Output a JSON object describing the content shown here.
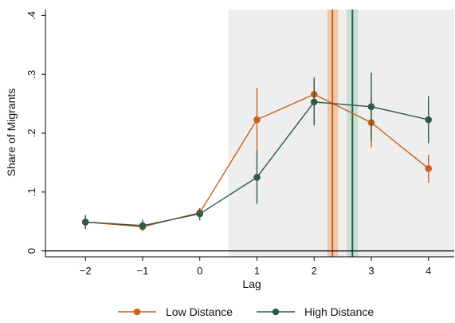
{
  "chart_data": {
    "type": "line",
    "xlabel": "Lag",
    "ylabel": "Share of Migrants",
    "x": [
      -2,
      -1,
      0,
      1,
      2,
      3,
      4
    ],
    "x_tick_labels": [
      "−2",
      "−1",
      "0",
      "1",
      "2",
      "3",
      "4"
    ],
    "xlim": [
      -2.7,
      4.45
    ],
    "ylim": [
      -0.01,
      0.41
    ],
    "y_ticks": [
      0,
      0.1,
      0.2,
      0.3,
      0.4
    ],
    "y_tick_labels": [
      "0",
      ".1",
      ".2",
      ".3",
      ".4"
    ],
    "grid": false,
    "legend_position": "bottom",
    "shaded_region": {
      "x_from": 0.5,
      "x_to": 4.45,
      "color": "#eeeeee"
    },
    "vertical_markers": [
      {
        "series": "Low Distance",
        "x": 2.32,
        "band": [
          2.23,
          2.42
        ],
        "color": "#c8621c",
        "band_color": "#f2c9a8"
      },
      {
        "series": "High Distance",
        "x": 2.67,
        "band": [
          2.57,
          2.77
        ],
        "color": "#2f5a48",
        "band_color": "#c8dfd3"
      }
    ],
    "series": [
      {
        "name": "Low Distance",
        "color": "#c8621c",
        "values": [
          0.049,
          0.041,
          0.065,
          0.223,
          0.266,
          0.218,
          0.14
        ],
        "ci_low": [
          0.04,
          0.035,
          0.058,
          0.17,
          0.238,
          0.176,
          0.116
        ],
        "ci_high": [
          0.058,
          0.048,
          0.072,
          0.277,
          0.295,
          0.26,
          0.163
        ]
      },
      {
        "name": "High Distance",
        "color": "#2f5a48",
        "values": [
          0.049,
          0.043,
          0.063,
          0.125,
          0.253,
          0.245,
          0.223
        ],
        "ci_low": [
          0.037,
          0.034,
          0.052,
          0.08,
          0.213,
          0.187,
          0.183
        ],
        "ci_high": [
          0.061,
          0.053,
          0.073,
          0.171,
          0.293,
          0.303,
          0.263
        ]
      }
    ]
  }
}
